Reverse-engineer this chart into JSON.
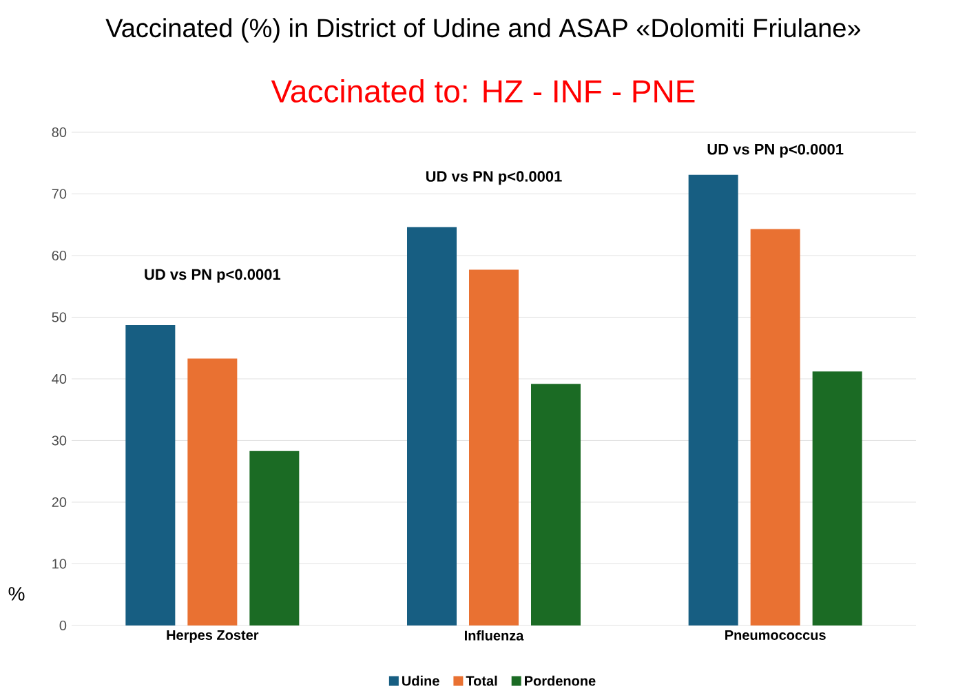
{
  "chart_data": {
    "type": "bar",
    "title": "Vaccinated (%) in District of Udine and ASAP «Dolomiti Friulane»",
    "subtitle": "Vaccinated to: HZ - INF - PNE",
    "ylabel": "%",
    "categories": [
      "Herpes Zoster",
      "Influenza",
      "Pneumococcus"
    ],
    "series": [
      {
        "name": "Udine",
        "color": "#175e82",
        "values": [
          48.7,
          64.6,
          73.1
        ]
      },
      {
        "name": "Total",
        "color": "#e97132",
        "values": [
          43.3,
          57.7,
          64.3
        ]
      },
      {
        "name": "Pordenone",
        "color": "#1b6b24",
        "values": [
          28.3,
          39.2,
          41.2
        ]
      }
    ],
    "ylim": [
      0,
      80
    ],
    "yticks": [
      0,
      10,
      20,
      30,
      40,
      50,
      60,
      70,
      80
    ],
    "grid": "y",
    "legend": "bottom",
    "annotations": [
      "UD vs PN p<0.0001",
      "UD vs PN p<0.0001",
      "UD vs PN p<0.0001"
    ]
  }
}
